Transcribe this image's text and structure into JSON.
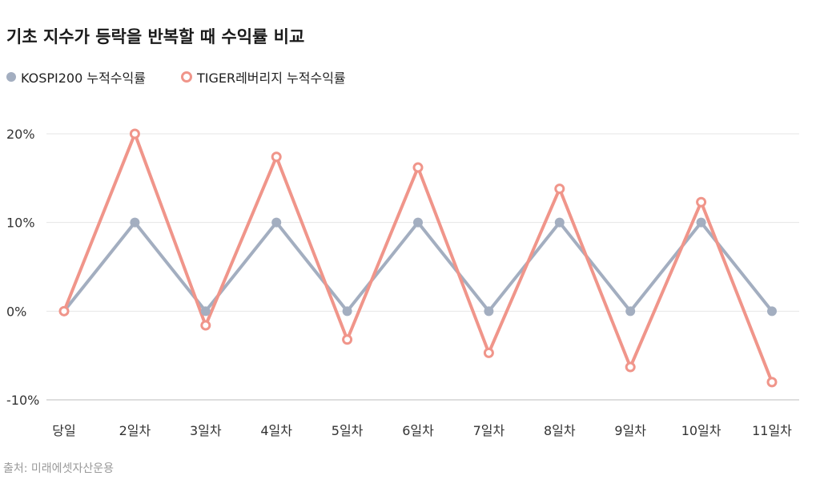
{
  "chart_data": {
    "type": "line",
    "title": "기초 지수가 등락을 반복할 때 수익률 비교",
    "categories": [
      "당일",
      "2일차",
      "3일차",
      "4일차",
      "5일차",
      "6일차",
      "7일차",
      "8일차",
      "9일차",
      "10일차",
      "11일차"
    ],
    "series": [
      {
        "name": "KOSPI200 누적수익률",
        "color": "#a3aec0",
        "marker": "filled-dot",
        "values": [
          0,
          10,
          0,
          10,
          0,
          10,
          0,
          10,
          0,
          10,
          0
        ]
      },
      {
        "name": "TIGER레버리지 누적수익률",
        "color": "#f0958a",
        "marker": "hollow-ring",
        "values": [
          0,
          20,
          -1.6,
          17.4,
          -3.2,
          16.2,
          -4.7,
          13.8,
          -6.3,
          12.3,
          -8.0
        ]
      }
    ],
    "yticks": [
      20,
      10,
      0,
      -10
    ],
    "ytick_labels": [
      "20%",
      "10%",
      "0%",
      "-10%"
    ],
    "ylim": [
      -10,
      20
    ],
    "grid": true,
    "legend": "top-left"
  },
  "source": "출처: 미래에셋자산운용"
}
